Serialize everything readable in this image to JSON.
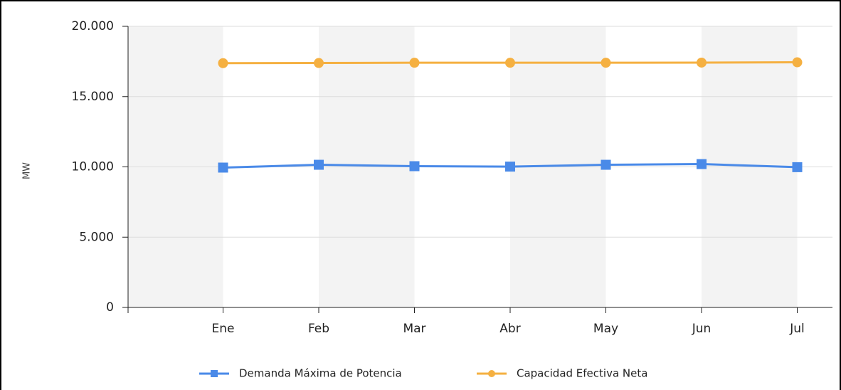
{
  "chart_data": {
    "type": "line",
    "y_label": "MW",
    "categories": [
      "Ene",
      "Feb",
      "Mar",
      "Abr",
      "May",
      "Jun",
      "Jul"
    ],
    "series": [
      {
        "name": "Demanda Máxima de Potencia",
        "color": "#4a8ae8",
        "marker": "square",
        "values": [
          9950,
          10150,
          10050,
          10020,
          10150,
          10200,
          9980
        ]
      },
      {
        "name": "Capacidad Efectiva Neta",
        "color": "#f5b041",
        "marker": "circle",
        "values": [
          17380,
          17390,
          17410,
          17410,
          17410,
          17420,
          17440
        ]
      }
    ],
    "ylim": [
      0,
      20000
    ],
    "yticks": [
      0,
      {
        "value": 5000,
        "label": "5.000"
      },
      {
        "value": 10000,
        "label": "10.000"
      },
      {
        "value": 15000,
        "label": "15.000"
      },
      {
        "value": 20000,
        "label": "20.000"
      }
    ],
    "grid": true,
    "legend": "bottom"
  }
}
